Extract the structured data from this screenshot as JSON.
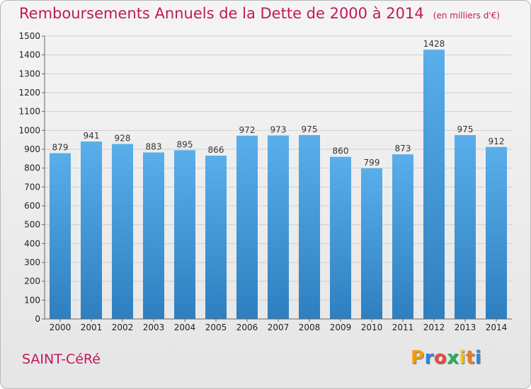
{
  "chart_data": {
    "type": "bar",
    "title": "Remboursements Annuels de la Dette de 2000 à 2014",
    "subtitle": "(en milliers d'€)",
    "categories": [
      "2000",
      "2001",
      "2002",
      "2003",
      "2004",
      "2005",
      "2006",
      "2007",
      "2008",
      "2009",
      "2010",
      "2011",
      "2012",
      "2013",
      "2014"
    ],
    "values": [
      879,
      941,
      928,
      883,
      895,
      866,
      972,
      973,
      975,
      860,
      799,
      873,
      1428,
      975,
      912
    ],
    "ylim": [
      0,
      1500
    ],
    "yticks": [
      0,
      100,
      200,
      300,
      400,
      500,
      600,
      700,
      800,
      900,
      1000,
      1100,
      1200,
      1300,
      1400,
      1500
    ],
    "grid": true,
    "bar_color": "#4a9fe3",
    "xlabel": "",
    "ylabel": ""
  },
  "commune": "SAINT-CéRé",
  "logo": {
    "letters": [
      "P",
      "r",
      "o",
      "x",
      "i",
      "t",
      "i"
    ],
    "colors": [
      "#f39c12",
      "#2e86de",
      "#e74c3c",
      "#27ae60",
      "#f1c40f",
      "#e67e22",
      "#2e86de"
    ]
  },
  "title_color": "#c2185b"
}
